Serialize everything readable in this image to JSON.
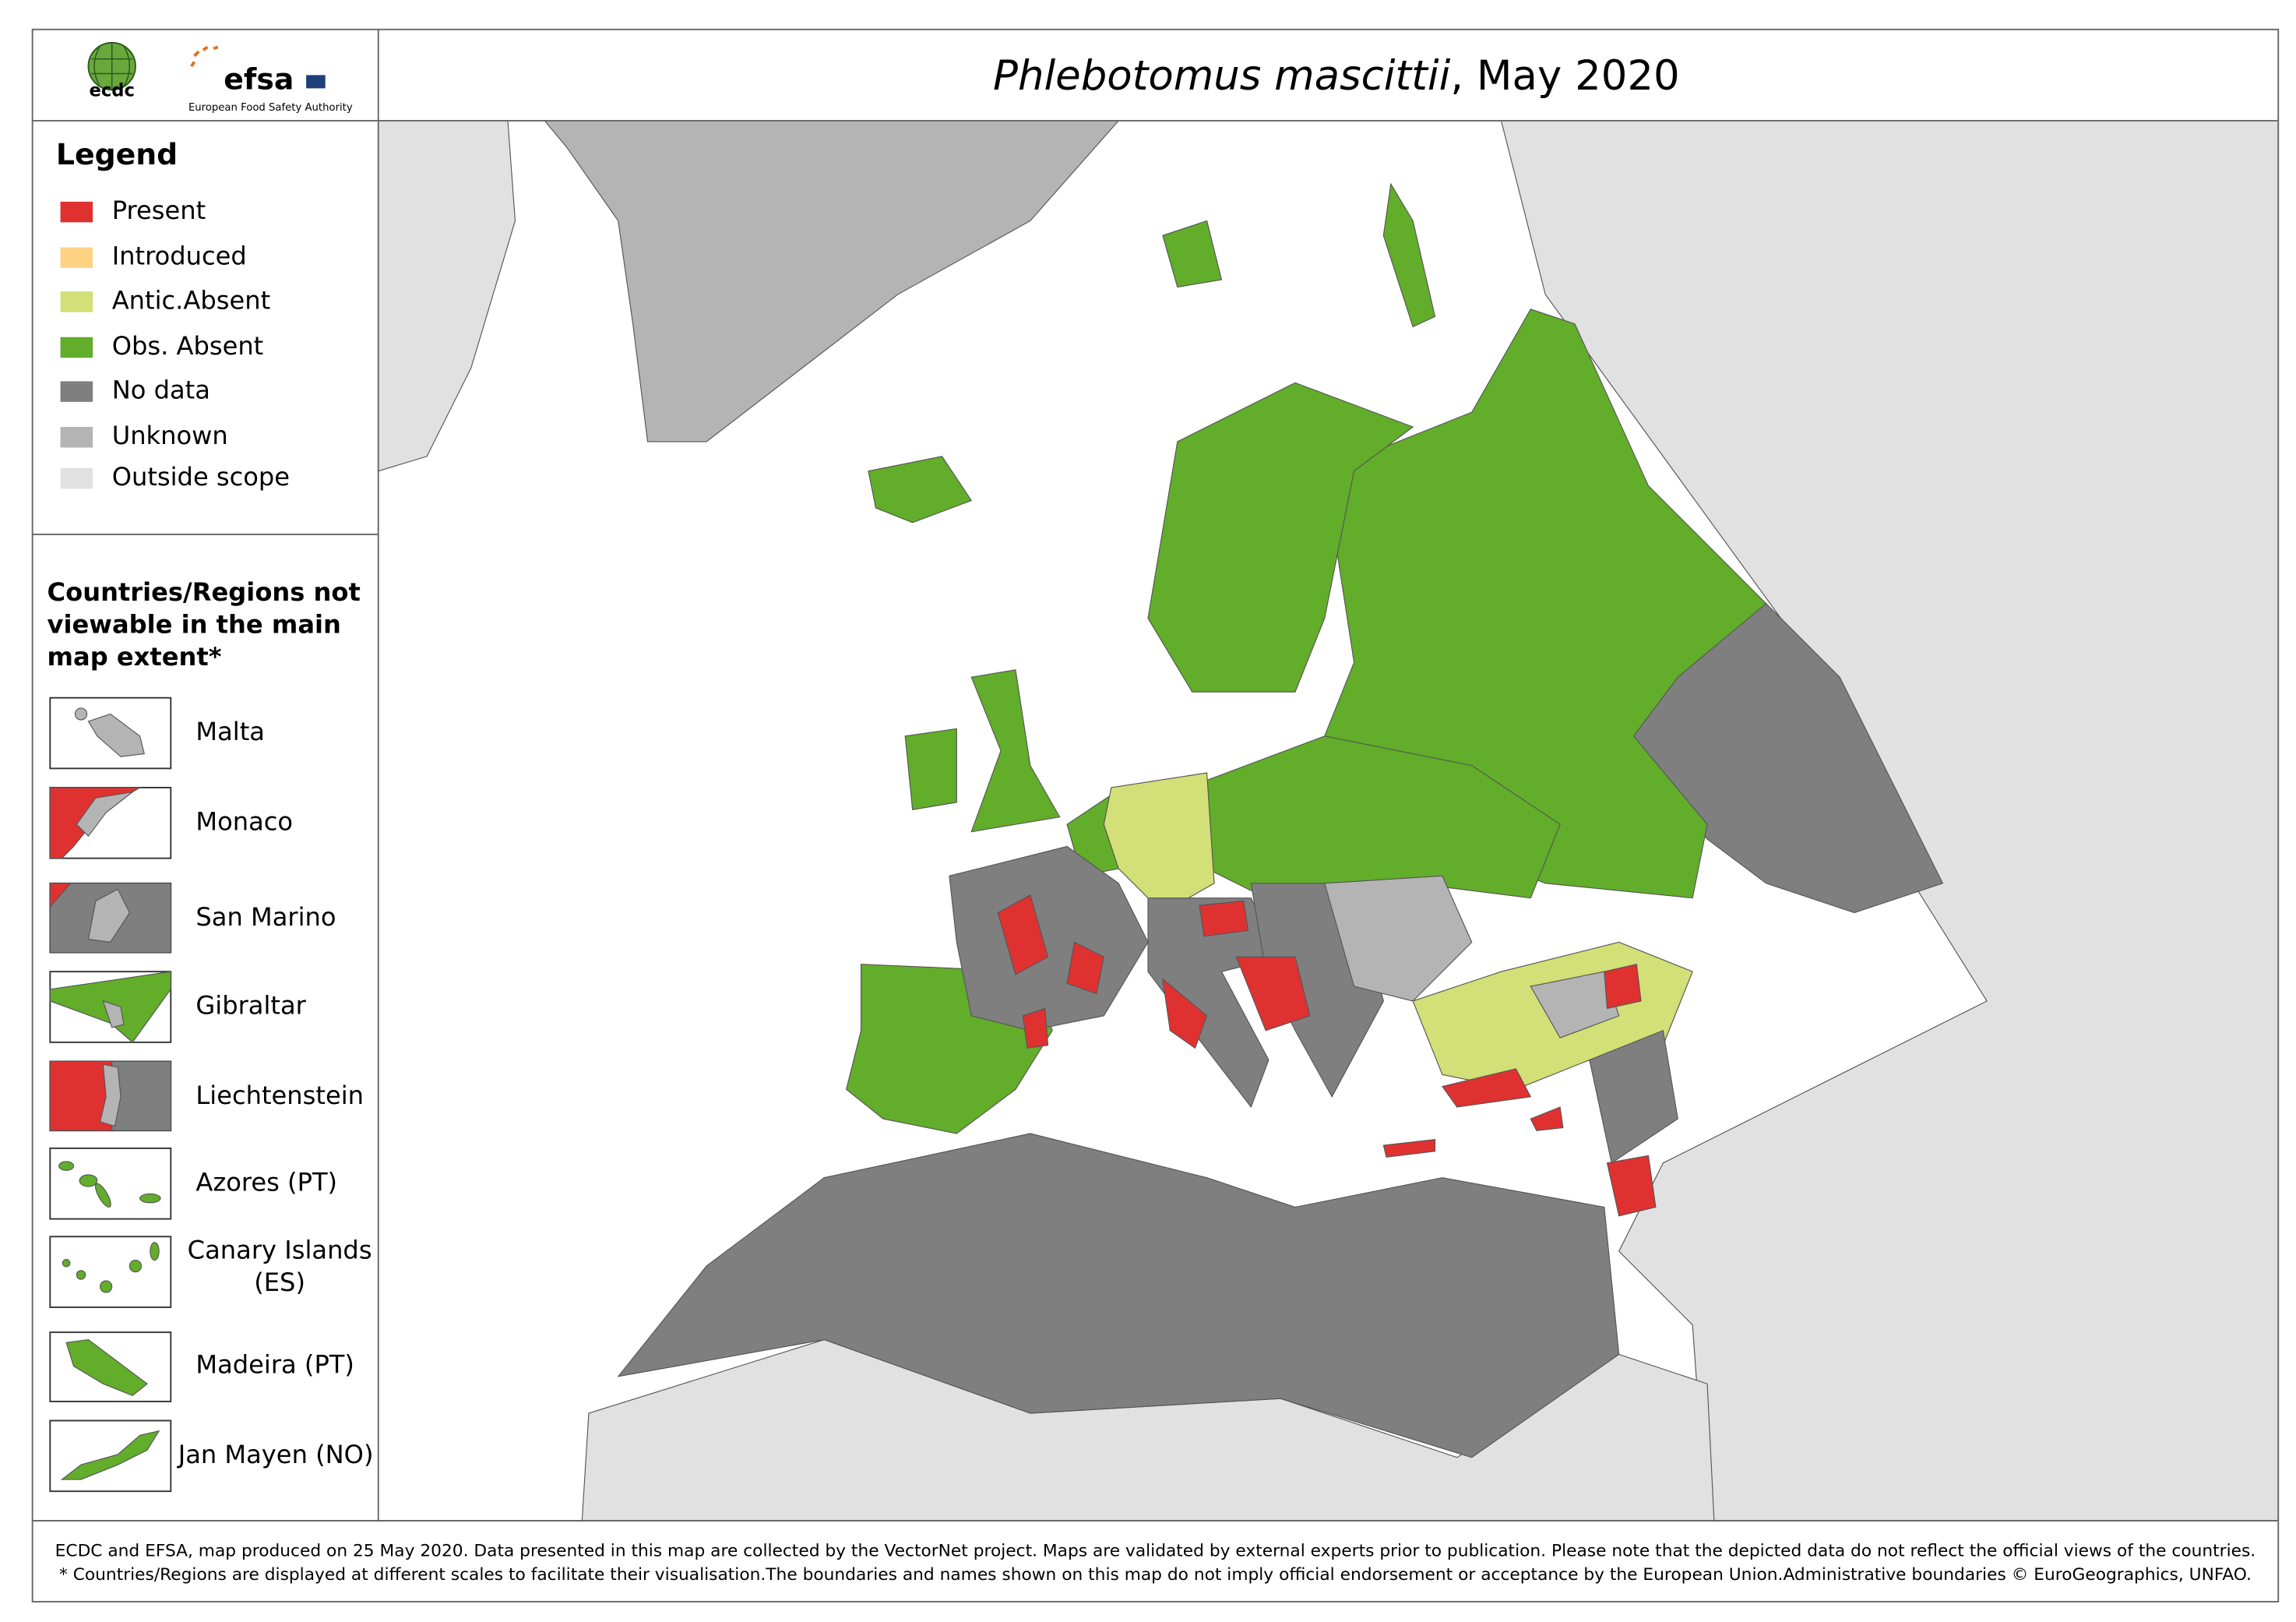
{
  "header": {
    "logo_ecdc": "ecdc",
    "logo_efsa": "efsa",
    "logo_efsa_sub": "European Food Safety Authority",
    "title_species": "Phlebotomus mascittii",
    "title_rest": ", May 2020"
  },
  "legend": {
    "title": "Legend",
    "items": [
      {
        "label": "Present",
        "color": "#e03131"
      },
      {
        "label": "Introduced",
        "color": "#fdd283"
      },
      {
        "label": "Antic.Absent",
        "color": "#d3df77"
      },
      {
        "label": "Obs. Absent",
        "color": "#62ad2a"
      },
      {
        "label": "No data",
        "color": "#7f7f7f"
      },
      {
        "label": "Unknown",
        "color": "#b4b4b4"
      },
      {
        "label": "Outside scope",
        "color": "#e1e1e1"
      }
    ]
  },
  "insets": {
    "title": "Countries/Regions not viewable in the main map extent*",
    "items": [
      "Malta",
      "Monaco",
      "San Marino",
      "Gibraltar",
      "Liechtenstein",
      "Azores (PT)",
      "Canary Islands (ES)",
      "Madeira (PT)",
      "Jan Mayen (NO)"
    ]
  },
  "footer": {
    "lines": [
      "ECDC and EFSA, map produced on 25 May 2020. Data presented in this map are collected by the VectorNet project. Maps are validated by external experts prior to publication. Please note that the depicted data do not reflect the official views of the countries.",
      "* Countries/Regions are displayed at different scales to facilitate their visualisation.The boundaries and names shown on this map do not imply official endorsement or acceptance by the European Union.Administrative boundaries © EuroGeographics, UNFAO."
    ]
  }
}
